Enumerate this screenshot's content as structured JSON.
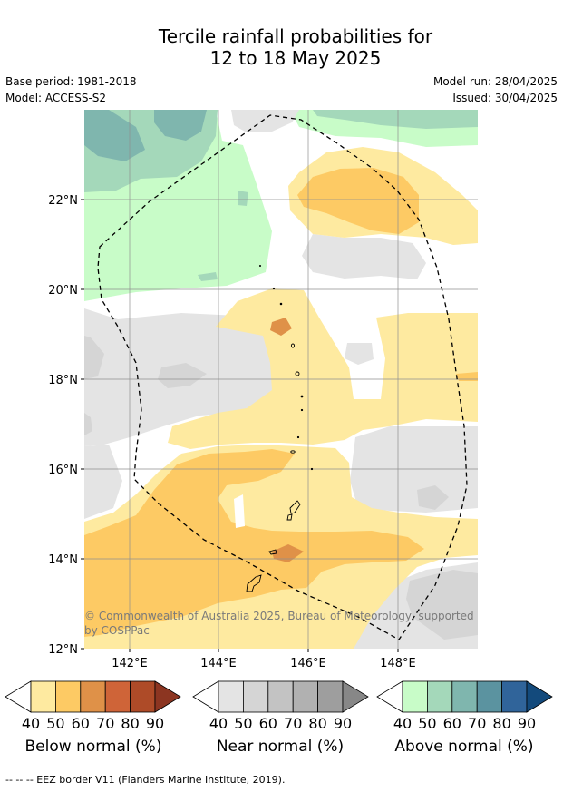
{
  "title": {
    "line1": "Tercile rainfall probabilities for",
    "line2": "12 to 18 May 2025"
  },
  "meta": {
    "base_period": "Base period: 1981-2018",
    "model": "Model: ACCESS-S2",
    "model_run": "Model run: 28/04/2025",
    "issued": "Issued: 30/04/2025"
  },
  "map": {
    "lat_ticks": [
      "22°N",
      "20°N",
      "18°N",
      "16°N",
      "14°N",
      "12°N"
    ],
    "lon_ticks": [
      "142°E",
      "144°E",
      "146°E",
      "148°E"
    ],
    "copyright_line1": "© Commonwealth of Australia 2025, Bureau of Meteorology, supported",
    "copyright_line2": "by COSPPac"
  },
  "legends": [
    {
      "name": "Below normal (%)",
      "colors": [
        "#ffffff",
        "#feeaa0",
        "#fdca64",
        "#df9148",
        "#cf6438",
        "#ae4b28",
        "#8c3521"
      ],
      "ticks": [
        "40",
        "50",
        "60",
        "70",
        "80",
        "90"
      ]
    },
    {
      "name": "Near normal (%)",
      "colors": [
        "#ffffff",
        "#e4e4e4",
        "#d5d5d5",
        "#c3c3c3",
        "#b1b1b1",
        "#9e9e9e",
        "#878787"
      ],
      "ticks": [
        "40",
        "50",
        "60",
        "70",
        "80",
        "90"
      ]
    },
    {
      "name": "Above normal (%)",
      "colors": [
        "#ffffff",
        "#c8fcc8",
        "#a4d8ba",
        "#7fb6ae",
        "#5b93a0",
        "#30649a",
        "#134a7c"
      ],
      "ticks": [
        "40",
        "50",
        "60",
        "70",
        "80",
        "90"
      ]
    }
  ],
  "footer": "--  --  -- EEZ border V11 (Flanders Marine Institute, 2019)."
}
